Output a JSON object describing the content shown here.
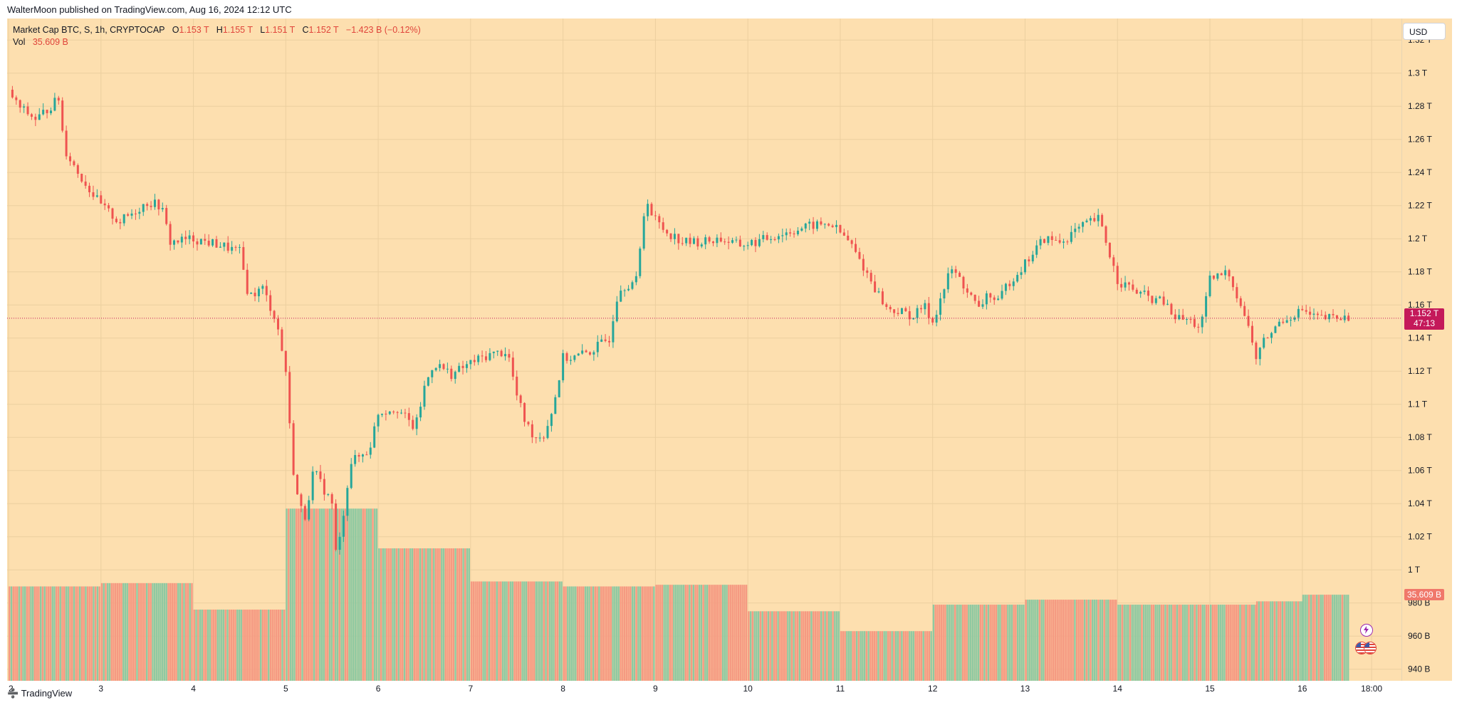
{
  "header": {
    "published": "WalterMoon published on TradingView.com, Aug 16, 2024 12:12 UTC"
  },
  "legend": {
    "symbol": "Market Cap BTC, S, 1h, CRYPTOCAP",
    "open_label": "O",
    "open": "1.153 T",
    "high_label": "H",
    "high": "1.155 T",
    "low_label": "L",
    "low": "1.151 T",
    "close_label": "C",
    "close": "1.152 T",
    "change": "−1.423 B (−0.12%)",
    "vol_label": "Vol",
    "vol": "35.609 B"
  },
  "currency_button": "USD",
  "price_tag": {
    "price": "1.152 T",
    "countdown": "47:13"
  },
  "volume_tag": "35.609 B",
  "footer": {
    "brand": "TradingView"
  },
  "colors": {
    "background": "#fddfaf",
    "up": "#26a69a",
    "down": "#ef5350",
    "vol_up": "#8fc9a1",
    "vol_down": "#f59a82",
    "price_tag": "#c4195a"
  },
  "chart_data": {
    "type": "candlestick",
    "title": "Market Cap BTC, S, 1h, CRYPTOCAP",
    "y_ticks": [
      "1.32 T",
      "1.3 T",
      "1.28 T",
      "1.26 T",
      "1.24 T",
      "1.22 T",
      "1.2 T",
      "1.18 T",
      "1.16 T",
      "1.14 T",
      "1.12 T",
      "1.1 T",
      "1.08 T",
      "1.06 T",
      "1.04 T",
      "1.02 T",
      "1 T",
      "980 B",
      "960 B",
      "940 B"
    ],
    "y_tick_values": [
      1320,
      1300,
      1280,
      1260,
      1240,
      1220,
      1200,
      1180,
      1160,
      1140,
      1120,
      1100,
      1080,
      1060,
      1040,
      1020,
      1000,
      980,
      960,
      940
    ],
    "y_unit": "B (billions USD)",
    "ylim": [
      933,
      1333
    ],
    "x_ticks": [
      "2",
      "3",
      "4",
      "5",
      "6",
      "7",
      "8",
      "9",
      "10",
      "11",
      "12",
      "13",
      "14",
      "15",
      "16",
      "18:00"
    ],
    "x_tick_days": [
      2,
      3,
      4,
      5,
      6,
      7,
      8,
      9,
      10,
      11,
      12,
      13,
      14,
      15,
      16,
      16.75
    ],
    "xlim": [
      2,
      16.78
    ],
    "last_close": 1152,
    "price_path_days": [
      2.0,
      2.1,
      2.3,
      2.55,
      2.6,
      2.75,
      3.0,
      3.2,
      3.5,
      3.65,
      3.75,
      4.0,
      4.3,
      4.5,
      4.6,
      4.75,
      4.9,
      5.0,
      5.05,
      5.1,
      5.2,
      5.3,
      5.5,
      5.55,
      5.7,
      5.9,
      6.0,
      6.2,
      6.4,
      6.5,
      6.6,
      6.8,
      7.0,
      7.2,
      7.4,
      7.5,
      7.6,
      7.7,
      7.8,
      7.9,
      8.0,
      8.1,
      8.3,
      8.5,
      8.6,
      8.8,
      8.9,
      8.95,
      9.1,
      9.3,
      9.5,
      9.7,
      9.9,
      10.1,
      10.3,
      10.5,
      10.7,
      10.9,
      11.1,
      11.3,
      11.5,
      11.7,
      11.8,
      11.9,
      12.0,
      12.2,
      12.3,
      12.5,
      12.6,
      12.7,
      12.8,
      13.0,
      13.2,
      13.4,
      13.5,
      13.7,
      13.8,
      14.0,
      14.2,
      14.4,
      14.5,
      14.6,
      14.8,
      14.9,
      15.0,
      15.2,
      15.4,
      15.5,
      15.6,
      15.7,
      15.75,
      15.9,
      16.0,
      16.1,
      16.2,
      16.3,
      16.5
    ],
    "price_path_values": [
      1290,
      1280,
      1272,
      1285,
      1255,
      1240,
      1220,
      1210,
      1222,
      1220,
      1198,
      1200,
      1196,
      1192,
      1165,
      1170,
      1150,
      1120,
      1080,
      1050,
      1030,
      1060,
      1040,
      1005,
      1065,
      1072,
      1095,
      1098,
      1085,
      1110,
      1125,
      1118,
      1125,
      1130,
      1132,
      1105,
      1088,
      1080,
      1082,
      1100,
      1128,
      1128,
      1132,
      1140,
      1170,
      1175,
      1228,
      1215,
      1205,
      1198,
      1198,
      1200,
      1196,
      1198,
      1202,
      1205,
      1208,
      1209,
      1198,
      1178,
      1158,
      1155,
      1153,
      1160,
      1150,
      1182,
      1175,
      1157,
      1168,
      1160,
      1172,
      1185,
      1200,
      1198,
      1203,
      1210,
      1212,
      1175,
      1168,
      1163,
      1162,
      1153,
      1150,
      1146,
      1175,
      1180,
      1150,
      1128,
      1140,
      1145,
      1150,
      1154,
      1157,
      1153,
      1152,
      1152,
      1152
    ],
    "volume_steps": [
      {
        "from_day": 2,
        "to_day": 3,
        "value": 990
      },
      {
        "from_day": 3,
        "to_day": 4,
        "value": 992
      },
      {
        "from_day": 4,
        "to_day": 5,
        "value": 976
      },
      {
        "from_day": 5,
        "to_day": 6,
        "value": 1037
      },
      {
        "from_day": 6,
        "to_day": 7,
        "value": 1013
      },
      {
        "from_day": 7,
        "to_day": 8,
        "value": 993
      },
      {
        "from_day": 8,
        "to_day": 9,
        "value": 990
      },
      {
        "from_day": 9,
        "to_day": 10,
        "value": 991
      },
      {
        "from_day": 10,
        "to_day": 11,
        "value": 975
      },
      {
        "from_day": 11,
        "to_day": 12,
        "value": 963
      },
      {
        "from_day": 12,
        "to_day": 13,
        "value": 979
      },
      {
        "from_day": 13,
        "to_day": 14,
        "value": 982
      },
      {
        "from_day": 14,
        "to_day": 15,
        "value": 979
      },
      {
        "from_day": 15,
        "to_day": 15.5,
        "value": 979
      },
      {
        "from_day": 15.5,
        "to_day": 16,
        "value": 981
      },
      {
        "from_day": 16,
        "to_day": 16.5,
        "value": 985
      }
    ],
    "grid": true,
    "legend_position": "top-left"
  }
}
